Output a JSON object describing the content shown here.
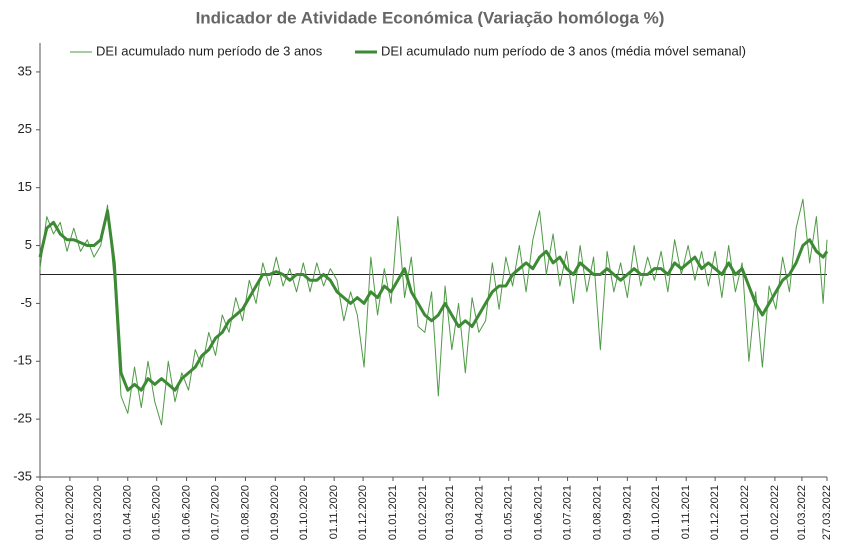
{
  "chart_data": {
    "type": "line",
    "title": "Indicador de Atividade Económica (Variação homóloga %)",
    "legend": "top",
    "x": [
      "2020-01-01",
      "2020-01-08",
      "2020-01-15",
      "2020-01-22",
      "2020-01-29",
      "2020-02-05",
      "2020-02-12",
      "2020-02-19",
      "2020-02-26",
      "2020-03-04",
      "2020-03-11",
      "2020-03-18",
      "2020-03-25",
      "2020-04-01",
      "2020-04-08",
      "2020-04-15",
      "2020-04-22",
      "2020-04-29",
      "2020-05-06",
      "2020-05-13",
      "2020-05-20",
      "2020-05-27",
      "2020-06-03",
      "2020-06-10",
      "2020-06-17",
      "2020-06-24",
      "2020-07-01",
      "2020-07-08",
      "2020-07-15",
      "2020-07-22",
      "2020-07-29",
      "2020-08-05",
      "2020-08-12",
      "2020-08-19",
      "2020-08-26",
      "2020-09-02",
      "2020-09-09",
      "2020-09-16",
      "2020-09-23",
      "2020-09-30",
      "2020-10-07",
      "2020-10-14",
      "2020-10-21",
      "2020-10-28",
      "2020-11-04",
      "2020-11-11",
      "2020-11-18",
      "2020-11-25",
      "2020-12-02",
      "2020-12-09",
      "2020-12-16",
      "2020-12-23",
      "2020-12-30",
      "2021-01-06",
      "2021-01-13",
      "2021-01-20",
      "2021-01-27",
      "2021-02-03",
      "2021-02-10",
      "2021-02-17",
      "2021-02-24",
      "2021-03-03",
      "2021-03-10",
      "2021-03-17",
      "2021-03-24",
      "2021-03-31",
      "2021-04-07",
      "2021-04-14",
      "2021-04-21",
      "2021-04-28",
      "2021-05-05",
      "2021-05-12",
      "2021-05-19",
      "2021-05-26",
      "2021-06-02",
      "2021-06-09",
      "2021-06-16",
      "2021-06-23",
      "2021-06-30",
      "2021-07-07",
      "2021-07-14",
      "2021-07-21",
      "2021-07-28",
      "2021-08-04",
      "2021-08-11",
      "2021-08-18",
      "2021-08-25",
      "2021-09-01",
      "2021-09-08",
      "2021-09-15",
      "2021-09-22",
      "2021-09-29",
      "2021-10-06",
      "2021-10-13",
      "2021-10-20",
      "2021-10-27",
      "2021-11-03",
      "2021-11-10",
      "2021-11-17",
      "2021-11-24",
      "2021-12-01",
      "2021-12-08",
      "2021-12-15",
      "2021-12-22",
      "2021-12-29",
      "2022-01-05",
      "2022-01-12",
      "2022-01-19",
      "2022-01-26",
      "2022-02-02",
      "2022-02-09",
      "2022-02-16",
      "2022-02-23",
      "2022-03-02",
      "2022-03-09",
      "2022-03-16",
      "2022-03-23",
      "2022-03-27"
    ],
    "series": [
      {
        "name": "DEI acumulado num período de 3 anos",
        "color": "#4e9a45",
        "width": 1,
        "values": [
          1,
          10,
          7,
          9,
          4,
          8,
          4,
          6,
          3,
          5,
          12,
          -1,
          -21,
          -24,
          -16,
          -23,
          -15,
          -22,
          -26,
          -15,
          -22,
          -17,
          -20,
          -13,
          -16,
          -10,
          -14,
          -7,
          -10,
          -4,
          -8,
          -1,
          -5,
          2,
          -2,
          3,
          -2,
          1,
          -3,
          2,
          -3,
          2,
          -2,
          1,
          -1,
          -8,
          -3,
          -7,
          -16,
          3,
          -7,
          1,
          -5,
          10,
          -4,
          3,
          -9,
          -10,
          -3,
          -21,
          -2,
          -13,
          -5,
          -17,
          -4,
          -10,
          -8,
          2,
          -6,
          3,
          -2,
          5,
          -3,
          6,
          11,
          0,
          7,
          -2,
          4,
          -5,
          5,
          -3,
          3,
          -13,
          4,
          -3,
          2,
          -4,
          5,
          -2,
          3,
          -1,
          4,
          -3,
          6,
          0,
          5,
          -1,
          4,
          -2,
          4,
          -4,
          5,
          -3,
          2,
          -15,
          -3,
          -16,
          -2,
          -6,
          3,
          -3,
          8,
          13,
          2,
          10,
          -5,
          6
        ]
      },
      {
        "name": "DEI acumulado num período de 3 anos (média móvel semanal)",
        "color": "#3d8a35",
        "width": 3,
        "values": [
          3,
          8,
          9,
          7,
          6,
          6,
          5.5,
          5,
          5,
          6,
          11,
          2,
          -17,
          -20,
          -19,
          -20,
          -18,
          -19,
          -18,
          -19,
          -20,
          -18,
          -17,
          -16,
          -14,
          -13,
          -11,
          -10,
          -8,
          -7,
          -6,
          -4,
          -2,
          0,
          0,
          0.5,
          0,
          -1,
          0,
          0,
          -1,
          -1,
          0,
          -1,
          -3,
          -4,
          -5,
          -4,
          -5,
          -3,
          -4,
          -2,
          -3,
          -1,
          1,
          -3,
          -5,
          -7,
          -8,
          -7,
          -5,
          -7,
          -9,
          -8,
          -9,
          -7,
          -5,
          -3,
          -2,
          -2,
          0,
          1,
          2,
          1,
          3,
          4,
          2,
          3,
          1,
          0,
          2,
          1,
          0,
          0,
          1,
          0,
          -1,
          0,
          1,
          0,
          0,
          1,
          1,
          0,
          2,
          1,
          2,
          3,
          1,
          2,
          1,
          0,
          2,
          0,
          1,
          -2,
          -5,
          -7,
          -5,
          -3,
          -1,
          0,
          2,
          5,
          6,
          4,
          3,
          4
        ]
      }
    ],
    "xlim": [
      "2020-01-01",
      "2022-03-27"
    ],
    "xticks": [
      {
        "value": "2020-01-01",
        "label": "01.01.2020"
      },
      {
        "value": "2020-02-01",
        "label": "01.02.2020"
      },
      {
        "value": "2020-03-01",
        "label": "01.03.2020"
      },
      {
        "value": "2020-04-01",
        "label": "01.04.2020"
      },
      {
        "value": "2020-05-01",
        "label": "01.05.2020"
      },
      {
        "value": "2020-06-01",
        "label": "01.06.2020"
      },
      {
        "value": "2020-07-01",
        "label": "01.07.2020"
      },
      {
        "value": "2020-08-01",
        "label": "01.08.2020"
      },
      {
        "value": "2020-09-01",
        "label": "01.09.2020"
      },
      {
        "value": "2020-10-01",
        "label": "01.10.2020"
      },
      {
        "value": "2020-11-01",
        "label": "01.11.2020"
      },
      {
        "value": "2020-12-01",
        "label": "01.12.2020"
      },
      {
        "value": "2021-01-01",
        "label": "01.01.2021"
      },
      {
        "value": "2021-02-01",
        "label": "01.02.2021"
      },
      {
        "value": "2021-03-01",
        "label": "01.03.2021"
      },
      {
        "value": "2021-04-01",
        "label": "01.04.2021"
      },
      {
        "value": "2021-05-01",
        "label": "01.05.2021"
      },
      {
        "value": "2021-06-01",
        "label": "01.06.2021"
      },
      {
        "value": "2021-07-01",
        "label": "01.07.2021"
      },
      {
        "value": "2021-08-01",
        "label": "01.08.2021"
      },
      {
        "value": "2021-09-01",
        "label": "01.09.2021"
      },
      {
        "value": "2021-10-01",
        "label": "01.10.2021"
      },
      {
        "value": "2021-11-01",
        "label": "01.11.2021"
      },
      {
        "value": "2021-12-01",
        "label": "01.12.2021"
      },
      {
        "value": "2022-01-01",
        "label": "01.01.2022"
      },
      {
        "value": "2022-02-01",
        "label": "01.02.2022"
      },
      {
        "value": "2022-03-01",
        "label": "01.03.2022"
      },
      {
        "value": "2022-03-27",
        "label": "27.03.2022"
      }
    ],
    "ylim": [
      -35,
      40
    ],
    "yticks": [
      -35,
      -25,
      -15,
      -5,
      5,
      15,
      25,
      35
    ]
  }
}
